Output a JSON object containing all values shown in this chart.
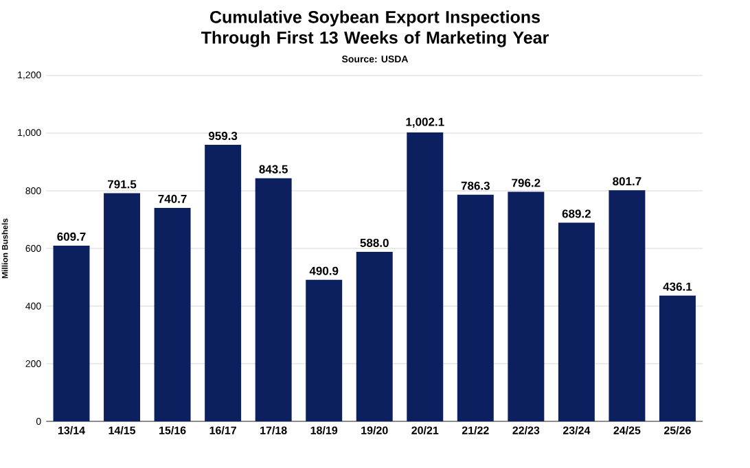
{
  "chart_data": {
    "type": "bar",
    "title": "Cumulative Soybean Export Inspections Through First 13 Weeks of Marketing Year",
    "subtitle": "Source: USDA",
    "ylabel": "Million Bushels",
    "categories": [
      "13/14",
      "14/15",
      "15/16",
      "16/17",
      "17/18",
      "18/19",
      "19/20",
      "20/21",
      "21/22",
      "22/23",
      "23/24",
      "24/25",
      "25/26"
    ],
    "values": [
      609.7,
      791.5,
      740.7,
      959.3,
      843.5,
      490.9,
      588.0,
      1002.1,
      786.3,
      796.2,
      689.2,
      801.7,
      436.1
    ],
    "value_labels": [
      "609.7",
      "791.5",
      "740.7",
      "959.3",
      "843.5",
      "490.9",
      "588.0",
      "1,002.1",
      "786.3",
      "796.2",
      "689.2",
      "801.7",
      "436.1"
    ],
    "color": "#0c1f5e",
    "ylim": [
      0,
      1200
    ],
    "yticks": [
      {
        "value": 0,
        "label": "0"
      },
      {
        "value": 200,
        "label": "200"
      },
      {
        "value": 400,
        "label": "400"
      },
      {
        "value": 600,
        "label": "600"
      },
      {
        "value": 800,
        "label": "800"
      },
      {
        "value": 1000,
        "label": "1,000"
      },
      {
        "value": 1200,
        "label": "1,200"
      }
    ],
    "grid": "y"
  }
}
